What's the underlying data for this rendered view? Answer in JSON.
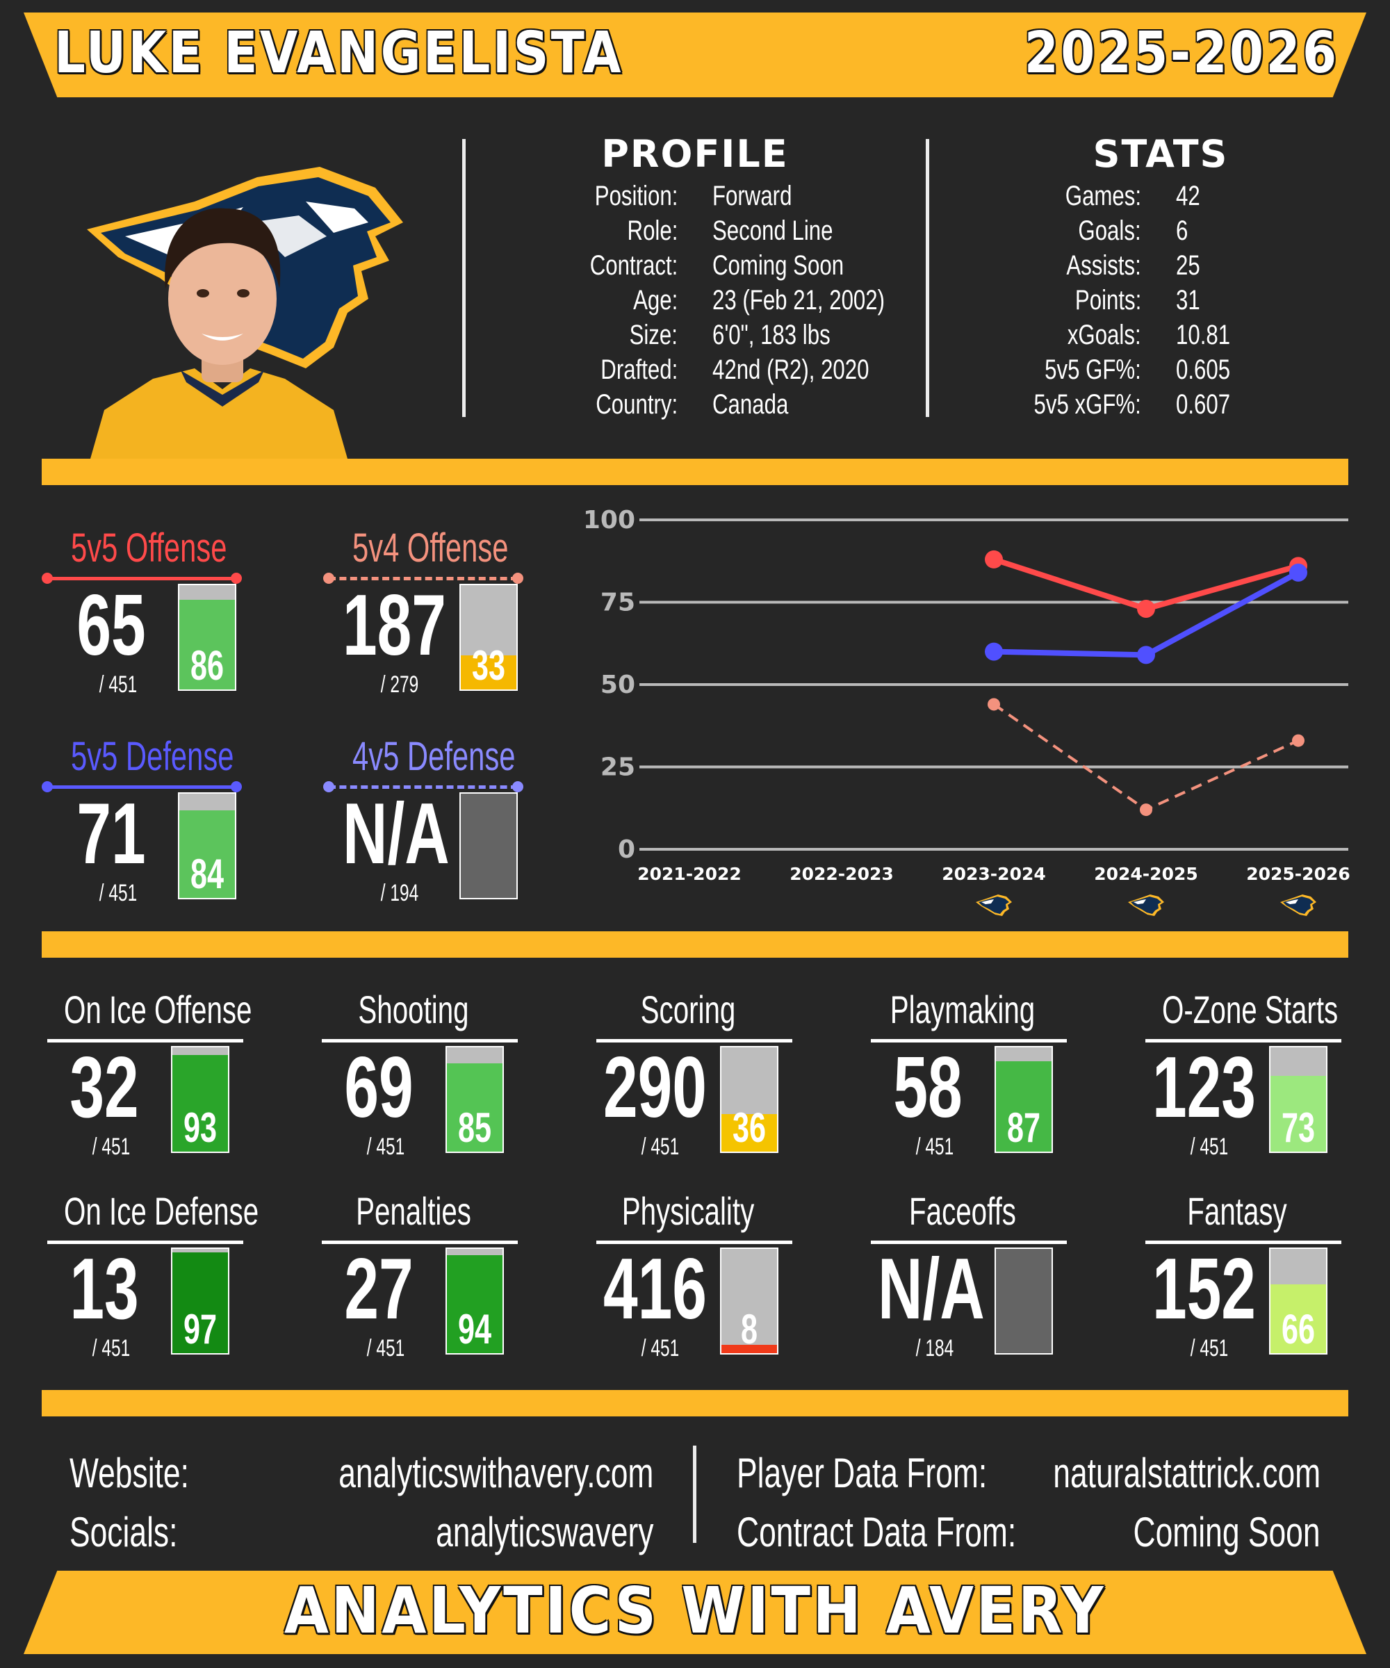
{
  "header": {
    "player_name": "LUKE EVANGELISTA",
    "season": "2025-2026"
  },
  "profile": {
    "title": "PROFILE",
    "rows": [
      {
        "label": "Position:",
        "value": "Forward"
      },
      {
        "label": "Role:",
        "value": "Second Line"
      },
      {
        "label": "Contract:",
        "value": "Coming Soon"
      },
      {
        "label": "Age:",
        "value": "23 (Feb 21, 2002)"
      },
      {
        "label": "Size:",
        "value": "6'0\", 183 lbs"
      },
      {
        "label": "Drafted:",
        "value": "42nd (R2), 2020"
      },
      {
        "label": "Country:",
        "value": "Canada"
      }
    ]
  },
  "stats": {
    "title": "STATS",
    "rows": [
      {
        "label": "Games:",
        "value": "42"
      },
      {
        "label": "Goals:",
        "value": "6"
      },
      {
        "label": "Assists:",
        "value": "25"
      },
      {
        "label": "Points:",
        "value": "31"
      },
      {
        "label": "xGoals:",
        "value": "10.81"
      },
      {
        "label": "5v5 GF%:",
        "value": "0.605"
      },
      {
        "label": "5v5 xGF%:",
        "value": "0.607"
      }
    ]
  },
  "top_metrics": [
    {
      "name": "5v5 Offense",
      "rank": "65",
      "total": "/ 451",
      "percentile": 86,
      "pct_label": "86",
      "color": "#ff4a4a",
      "fill": "#5cc45c",
      "dashed": false
    },
    {
      "name": "5v4 Offense",
      "rank": "187",
      "total": "/ 279",
      "percentile": 33,
      "pct_label": "33",
      "color": "#f4927e",
      "fill": "#f5b800",
      "dashed": true
    },
    {
      "name": "5v5 Defense",
      "rank": "71",
      "total": "/ 451",
      "percentile": 84,
      "pct_label": "84",
      "color": "#5a5aff",
      "fill": "#5cc45c",
      "dashed": false
    },
    {
      "name": "4v5 Defense",
      "rank": "N/A",
      "total": "/ 194",
      "percentile": null,
      "pct_label": "",
      "color": "#8a8aff",
      "fill": "#646464",
      "dashed": true
    }
  ],
  "metrics": [
    {
      "name": "On Ice Offense",
      "rank": "32",
      "total": "/ 451",
      "percentile": 93,
      "pct_label": "93",
      "fill": "#2aa52a"
    },
    {
      "name": "Shooting",
      "rank": "69",
      "total": "/ 451",
      "percentile": 85,
      "pct_label": "85",
      "fill": "#54c454"
    },
    {
      "name": "Scoring",
      "rank": "290",
      "total": "/ 451",
      "percentile": 36,
      "pct_label": "36",
      "fill": "#f5c400"
    },
    {
      "name": "Playmaking",
      "rank": "58",
      "total": "/ 451",
      "percentile": 87,
      "pct_label": "87",
      "fill": "#45b845"
    },
    {
      "name": "O-Zone Starts",
      "rank": "123",
      "total": "/ 451",
      "percentile": 73,
      "pct_label": "73",
      "fill": "#9ce87e"
    },
    {
      "name": "On Ice Defense",
      "rank": "13",
      "total": "/ 451",
      "percentile": 97,
      "pct_label": "97",
      "fill": "#138a13"
    },
    {
      "name": "Penalties",
      "rank": "27",
      "total": "/ 451",
      "percentile": 94,
      "pct_label": "94",
      "fill": "#22a022"
    },
    {
      "name": "Physicality",
      "rank": "416",
      "total": "/ 451",
      "percentile": 8,
      "pct_label": "8",
      "fill": "#f03a1a"
    },
    {
      "name": "Faceoffs",
      "rank": "N/A",
      "total": "/ 184",
      "percentile": null,
      "pct_label": "",
      "fill": "#646464"
    },
    {
      "name": "Fantasy",
      "rank": "152",
      "total": "/ 451",
      "percentile": 66,
      "pct_label": "66",
      "fill": "#c6f06a"
    }
  ],
  "chart_data": {
    "type": "line",
    "categories": [
      "2021-2022",
      "2022-2023",
      "2023-2024",
      "2024-2025",
      "2025-2026"
    ],
    "ylim": [
      0,
      100
    ],
    "yticks": [
      "0",
      "25",
      "50",
      "75",
      "100"
    ],
    "grid": true,
    "series": [
      {
        "values": [
          null,
          null,
          88,
          73,
          86
        ],
        "color": "#ff4a4a",
        "style": "solid"
      },
      {
        "values": [
          null,
          null,
          60,
          59,
          84
        ],
        "color": "#5050ff",
        "style": "solid"
      },
      {
        "values": [
          null,
          null,
          44,
          12,
          33
        ],
        "color": "#f4927e",
        "style": "dashed"
      }
    ],
    "team_icons": [
      "predators-logo-icon",
      "predators-logo-icon",
      "predators-logo-icon"
    ]
  },
  "footer": {
    "website_label": "Website:",
    "website": "analyticswithavery.com",
    "socials_label": "Socials:",
    "socials": "analyticswavery",
    "player_data_label": "Player Data From:",
    "player_data": "naturalstattrick.com",
    "contract_data_label": "Contract Data From:",
    "contract_data": "Coming Soon",
    "brand": "ANALYTICS WITH AVERY"
  },
  "colors": {
    "accent": "#fdb827",
    "background": "#262626"
  }
}
